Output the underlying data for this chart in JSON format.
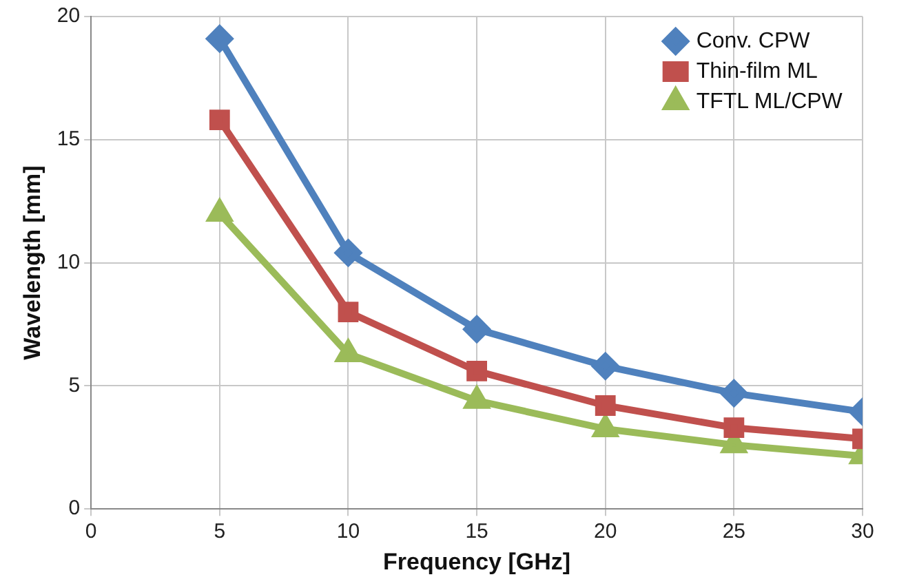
{
  "chart_data": {
    "type": "line",
    "xlabel": "Frequency [GHz]",
    "ylabel": "Wavelength [mm]",
    "x": [
      5,
      10,
      15,
      20,
      25,
      30
    ],
    "series": [
      {
        "name": "Conv. CPW",
        "color": "#4f81bd",
        "marker": "diamond",
        "values": [
          19.1,
          10.4,
          7.3,
          5.8,
          4.7,
          3.95
        ]
      },
      {
        "name": "Thin-film ML",
        "color": "#c0504d",
        "marker": "square",
        "values": [
          15.8,
          8.0,
          5.6,
          4.2,
          3.3,
          2.85
        ]
      },
      {
        "name": "TFTL ML/CPW",
        "color": "#9bbb59",
        "marker": "triangle",
        "values": [
          12.0,
          6.3,
          4.4,
          3.25,
          2.6,
          2.15
        ]
      }
    ],
    "xlim": [
      0,
      30
    ],
    "xticks": [
      0,
      5,
      10,
      15,
      20,
      25,
      30
    ],
    "ylim": [
      0,
      20
    ],
    "yticks": [
      0,
      5,
      10,
      15,
      20
    ],
    "grid": true,
    "legend": "top right",
    "line_style": "solid"
  }
}
